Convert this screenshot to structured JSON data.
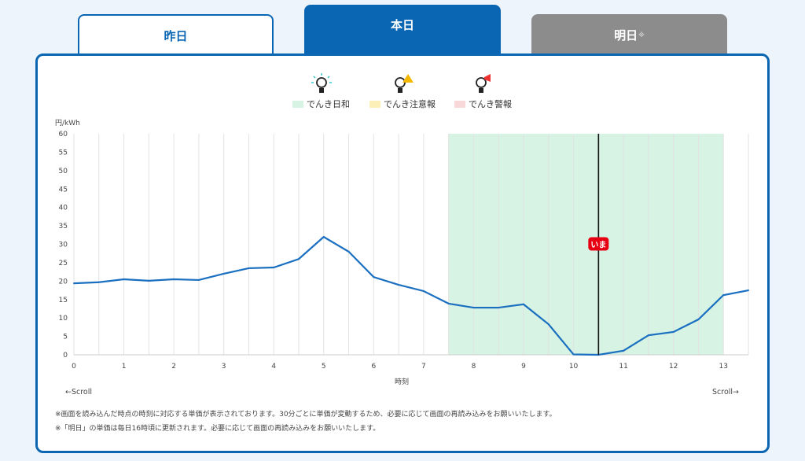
{
  "tabs": [
    {
      "label": "昨日"
    },
    {
      "label": "本日"
    },
    {
      "label": "明日",
      "mark": "※"
    }
  ],
  "legend": [
    {
      "label": "でんき日和",
      "icon": "bulb-shine-icon",
      "color": "#d6f3e4"
    },
    {
      "label": "でんき注意報",
      "icon": "bulb-warning-icon",
      "color": "#fdefb8"
    },
    {
      "label": "でんき警報",
      "icon": "bulb-megaphone-icon",
      "color": "#f8d8d8"
    }
  ],
  "scroll": {
    "left": "←Scroll",
    "right": "Scroll→"
  },
  "notes": [
    "※画面を読み込んだ時点の時刻に対応する単価が表示されております。30分ごとに単価が変動するため、必要に応じて画面の再読み込みをお願いいたします。",
    "※「明日」の単価は毎日16時頃に更新されます。必要に応じて画面の再読み込みをお願いいたします。"
  ],
  "chart_data": {
    "type": "line",
    "ylabel": "円/kWh",
    "xlabel": "時刻",
    "ylim": [
      0,
      60
    ],
    "xlim": [
      0,
      13.5
    ],
    "yticks": [
      0,
      5,
      10,
      15,
      20,
      25,
      30,
      35,
      40,
      45,
      50,
      55,
      60
    ],
    "xticks": [
      0,
      1,
      2,
      3,
      4,
      5,
      6,
      7,
      8,
      9,
      10,
      11,
      12,
      13
    ],
    "x": [
      0,
      0.5,
      1,
      1.5,
      2,
      2.5,
      3,
      3.5,
      4,
      4.5,
      5,
      5.5,
      6,
      6.5,
      7,
      7.5,
      8,
      8.5,
      9,
      9.5,
      10,
      10.5,
      11,
      11.5,
      12,
      12.5,
      13,
      13.5
    ],
    "values": [
      19.4,
      19.7,
      20.5,
      20.1,
      20.5,
      20.3,
      22,
      23.5,
      23.7,
      26,
      32,
      28,
      21.1,
      19,
      17.3,
      13.9,
      12.8,
      12.8,
      13.7,
      8.3,
      0.1,
      0,
      1.1,
      5.3,
      6.2,
      9.6,
      16.2,
      17.5
    ],
    "highlight": {
      "label": "でんき日和",
      "from": 7.5,
      "to": 13
    },
    "now": {
      "x": 10.5,
      "label": "いま"
    },
    "line_color": "#1a6fc0"
  }
}
